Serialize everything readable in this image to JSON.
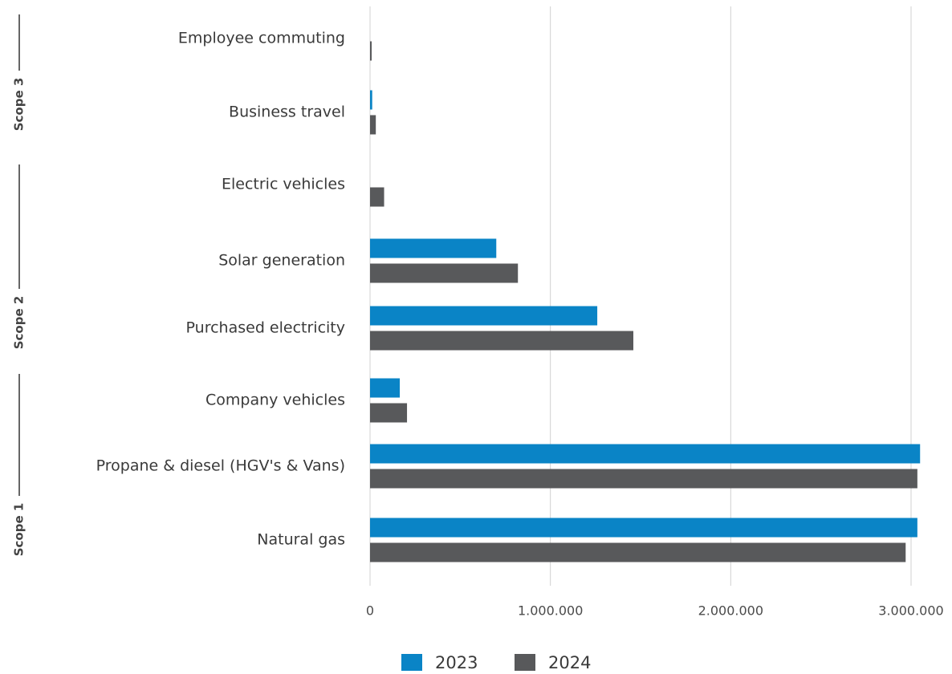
{
  "chart_data": {
    "type": "bar",
    "orientation": "horizontal",
    "title": "",
    "xlabel": "",
    "ylabel": "",
    "categories": [
      "Employee commuting",
      "Business travel",
      "Electric vehicles",
      "Solar generation",
      "Purchased electricity",
      "Company vehicles",
      "Propane & diesel (HGV's & Vans)",
      "Natural gas"
    ],
    "series": [
      {
        "name": "2023",
        "color": "#0a84c6",
        "values": [
          0,
          12000,
          0,
          700000,
          1260000,
          165000,
          3050000,
          3035000
        ]
      },
      {
        "name": "2024",
        "color": "#58595b",
        "values": [
          8000,
          32000,
          78000,
          820000,
          1460000,
          205000,
          3035000,
          2970000
        ]
      }
    ],
    "xlim": [
      0,
      3000000
    ],
    "x_ticks": [
      0,
      1000000,
      2000000,
      3000000
    ],
    "x_tick_labels": [
      "0",
      "1.000.000",
      "2.000.000",
      "3.000.000"
    ],
    "grid": "vertical",
    "legend_position": "bottom-center",
    "groups": [
      {
        "label": "Scope 3",
        "categories": [
          "Employee commuting",
          "Business travel"
        ]
      },
      {
        "label": "Scope 2",
        "categories": [
          "Electric vehicles",
          "Solar generation",
          "Purchased electricity"
        ]
      },
      {
        "label": "Scope 1",
        "categories": [
          "Company vehicles",
          "Propane & diesel (HGV's & Vans)",
          "Natural gas"
        ]
      }
    ],
    "grid_color": "#d0d0d0",
    "bracket_color": "#333333"
  }
}
